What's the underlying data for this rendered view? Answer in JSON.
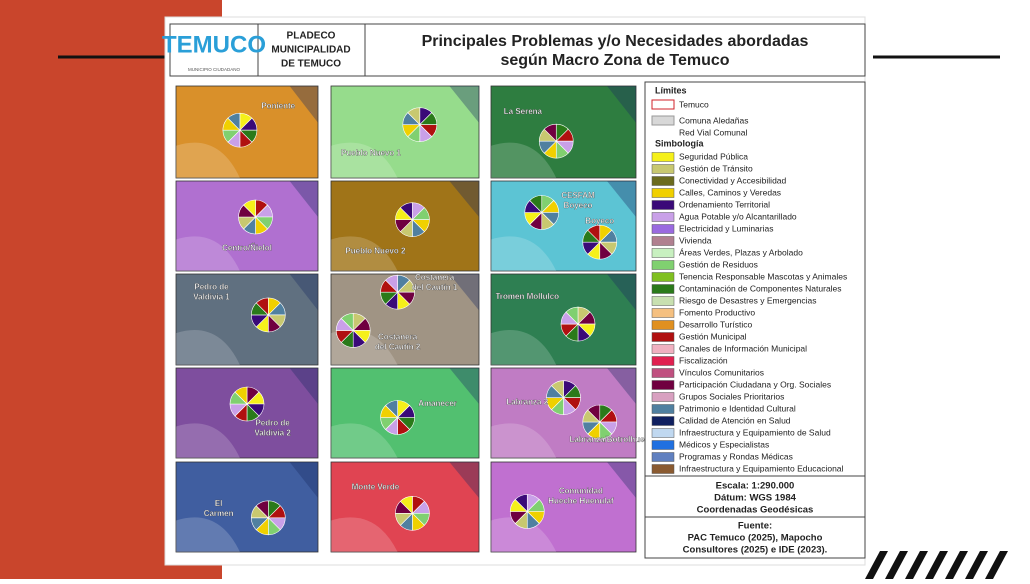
{
  "header": {
    "logo": "TEMUCO",
    "logo_subtitle": "MUNICIPIO CIUDADANO",
    "org": [
      "PLADECO",
      "MUNICIPALIDAD",
      "DE TEMUCO"
    ],
    "title": [
      "Principales Problemas y/o Necesidades abordadas",
      "según Macro Zona de Temuco"
    ]
  },
  "zones": [
    {
      "color": "#d9902a",
      "labels": [
        [
          "Poniente"
        ]
      ]
    },
    {
      "color": "#96dc8c",
      "labels": [
        [
          "Pueblo Nuevo 1"
        ]
      ]
    },
    {
      "color": "#2e7d40",
      "labels": [
        [
          "La Serena"
        ]
      ]
    },
    {
      "color": "#b070d0",
      "labels": [
        [
          "Centro/Ñielol"
        ]
      ]
    },
    {
      "color": "#a07418",
      "labels": [
        [
          "Pueblo Nuevo 2"
        ]
      ]
    },
    {
      "color": "#5cc4d4",
      "labels": [
        [
          "CESFAM",
          "Boyeco"
        ],
        [
          "Boyeco"
        ]
      ]
    },
    {
      "color": "#607080",
      "labels": [
        [
          "Pedro de",
          "Valdivia 1"
        ]
      ]
    },
    {
      "color": "#a09484",
      "labels": [
        [
          "Costanera",
          "del Cautín 1"
        ],
        [
          "Costanera",
          "del Cautín 2"
        ]
      ]
    },
    {
      "color": "#2e7f52",
      "labels": [
        [
          "Tromen Mollulco"
        ]
      ]
    },
    {
      "color": "#7e4e9e",
      "labels": [
        [
          "Pedro de",
          "Valdivia 2"
        ]
      ]
    },
    {
      "color": "#52c070",
      "labels": [
        [
          "Amanecer"
        ]
      ]
    },
    {
      "color": "#c07cc4",
      "labels": [
        [
          "Labranza 2"
        ],
        [
          "Labranza/Botrolhue"
        ]
      ]
    },
    {
      "color": "#405ea0",
      "labels": [
        [
          "El",
          "Carmen"
        ]
      ]
    },
    {
      "color": "#e04452",
      "labels": [
        [
          "Monte Verde"
        ]
      ]
    },
    {
      "color": "#c070d0",
      "labels": [
        [
          "Comunidad",
          "Hueche Huenulaf"
        ]
      ]
    }
  ],
  "legend": {
    "limits_title": "Límites",
    "limits": [
      {
        "label": "Temuco",
        "color": "#ffffff",
        "border": "#d0202a"
      },
      {
        "label": "Comuna Aledañas",
        "color": "#d8d8d8",
        "border": "#999999"
      },
      {
        "label": "Red Vial Comunal"
      }
    ],
    "symbology_title": "Simbología",
    "items": [
      {
        "label": "Seguridad Pública",
        "color": "#f5f01a"
      },
      {
        "label": "Gestión de Tránsito",
        "color": "#c8c870"
      },
      {
        "label": "Conectividad y Accesibilidad",
        "color": "#6b6b1e"
      },
      {
        "label": "Calles, Caminos y Veredas",
        "color": "#f0d000"
      },
      {
        "label": "Ordenamiento Territorial",
        "color": "#3a0a78"
      },
      {
        "label": "Agua Potable y/o Alcantarillado",
        "color": "#c9a0e8"
      },
      {
        "label": "Electricidad y Luminarias",
        "color": "#9a6ae0"
      },
      {
        "label": "Vivienda",
        "color": "#b08090"
      },
      {
        "label": "Áreas Verdes, Plazas y Arbolado",
        "color": "#c8f0c0"
      },
      {
        "label": "Gestión de Residuos",
        "color": "#80d070"
      },
      {
        "label": "Tenencia Responsable Mascotas y Animales",
        "color": "#80c020"
      },
      {
        "label": "Contaminación de Componentes Naturales",
        "color": "#2a7a1a"
      },
      {
        "label": "Riesgo de Desastres y Emergencias",
        "color": "#c8e0b0"
      },
      {
        "label": "Fomento Productivo",
        "color": "#f5c080"
      },
      {
        "label": "Desarrollo Turístico",
        "color": "#e09020"
      },
      {
        "label": "Gestión Municipal",
        "color": "#b01010"
      },
      {
        "label": "Canales de Información Municipal",
        "color": "#f0b0c0"
      },
      {
        "label": "Fiscalización",
        "color": "#e02050"
      },
      {
        "label": "Vínculos Comunitarios",
        "color": "#c05080"
      },
      {
        "label": "Participación Ciudadana y Org. Sociales",
        "color": "#700040"
      },
      {
        "label": "Grupos Sociales Prioritarios",
        "color": "#d8a0c0"
      },
      {
        "label": "Patrimonio e Identidad Cultural",
        "color": "#5080a0"
      },
      {
        "label": "Calidad de Atención en Salud",
        "color": "#102060"
      },
      {
        "label": "Infraestructura y Equipamiento de Salud",
        "color": "#c0d8f0"
      },
      {
        "label": "Médicos y Especialistas",
        "color": "#2070e0"
      },
      {
        "label": "Programas y Rondas Médicas",
        "color": "#6080c0"
      },
      {
        "label": "Infraestructura y Equipamiento Educacional",
        "color": "#8a5a30"
      }
    ]
  },
  "scale": [
    "Escala: 1:290.000",
    "Dátum: WGS 1984",
    "Coordenadas Geodésicas"
  ],
  "source": [
    "Fuente:",
    "PAC Temuco (2025), Mapocho",
    "Consultores (2025) e IDE (2023)."
  ]
}
